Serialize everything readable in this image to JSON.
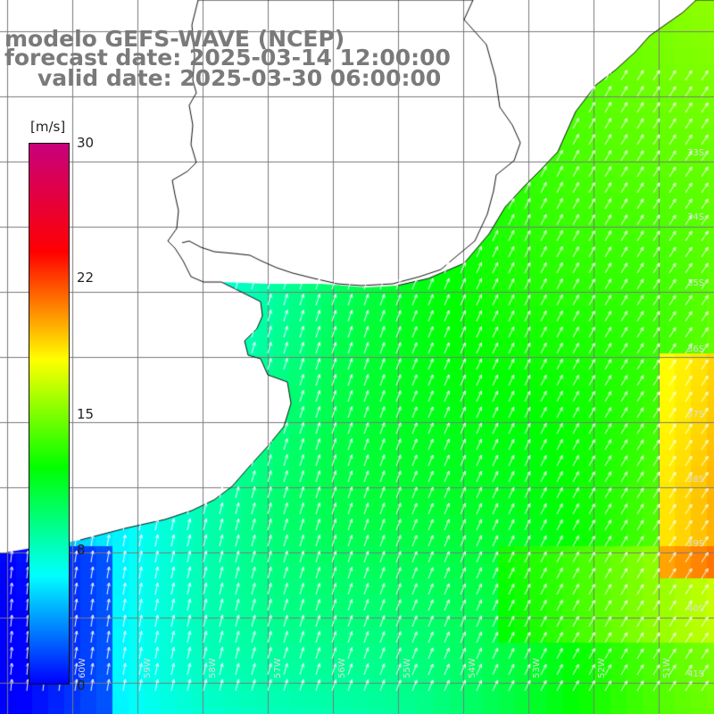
{
  "title": {
    "line1": "modelo GEFS-WAVE (NCEP)",
    "line2": "forecast date: 2025-03-14 12:00:00",
    "line3": "valid date: 2025-03-30 06:00:00"
  },
  "colorbar": {
    "unit": "[m/s]",
    "min": 0,
    "max": 30,
    "tick_labels": [
      "30",
      "22",
      "15",
      "8",
      "0"
    ],
    "tick_values": [
      30,
      22,
      15,
      8,
      0
    ],
    "stops": [
      "#0000ff",
      "#00ffff",
      "#00ff00",
      "#ffff00",
      "#ff0000",
      "#c8007d"
    ]
  },
  "grid_labels": {
    "latitudes": [
      "33S",
      "34S",
      "35S",
      "36S",
      "37S",
      "38S",
      "39S",
      "40S",
      "41S"
    ],
    "longitudes": [
      "60W",
      "59W",
      "58W",
      "57W",
      "56W",
      "55W",
      "54W",
      "53W",
      "52W",
      "51W"
    ]
  },
  "colors": {
    "land": "#ffffff",
    "coast": "#111111",
    "grid": "#7a7a7a",
    "arrows": "#ffffff",
    "title": "#7a7a7a"
  }
}
